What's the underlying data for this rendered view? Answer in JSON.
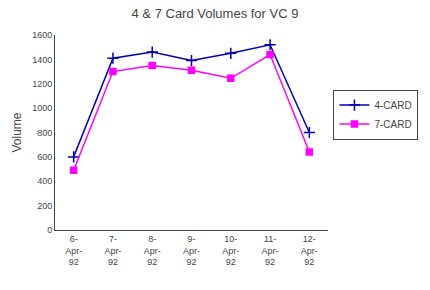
{
  "chart_data": {
    "type": "line",
    "title": "4 & 7 Card Volumes for VC 9",
    "ylabel": "Volume",
    "categories": [
      "6-\nApr-\n92",
      "7-\nApr-\n92",
      "8-\nApr-\n92",
      "9-\nApr-\n92",
      "10-\nApr-\n92",
      "11-\nApr-\n92",
      "12-\nApr-\n92"
    ],
    "series": [
      {
        "name": "4-CARD",
        "color": "#0000bb",
        "marker": "plus",
        "values": [
          600,
          1410,
          1460,
          1390,
          1450,
          1520,
          800
        ]
      },
      {
        "name": "7-CARD",
        "color": "#ff00ff",
        "marker": "square",
        "values": [
          490,
          1300,
          1350,
          1310,
          1245,
          1440,
          640
        ]
      }
    ],
    "ylim": [
      0,
      1600
    ],
    "yticks": [
      0,
      200,
      400,
      600,
      800,
      1000,
      1200,
      1400,
      1600
    ],
    "grid": false,
    "legend": "right"
  }
}
